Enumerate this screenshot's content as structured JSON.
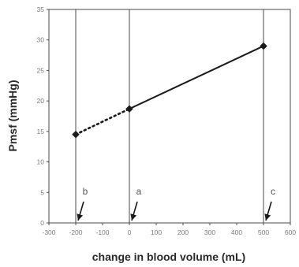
{
  "chart_data": {
    "type": "line",
    "title": "",
    "xlabel": "change in blood volume (mL)",
    "ylabel": "Pmsf (mmHg)",
    "xlim": [
      -300,
      600
    ],
    "ylim": [
      0,
      35
    ],
    "x_ticks": [
      "-300",
      "-200",
      "-100",
      "0",
      "100",
      "200",
      "300",
      "400",
      "500",
      "600"
    ],
    "y_ticks": [
      "0",
      "5",
      "10",
      "15",
      "20",
      "25",
      "30",
      "35"
    ],
    "grid": false,
    "reference_lines_x": [
      -200,
      0,
      500
    ],
    "series": [
      {
        "style": "dotted",
        "x": [
          -200,
          0
        ],
        "y": [
          14.5,
          18.7
        ]
      },
      {
        "style": "solid",
        "x": [
          0,
          500
        ],
        "y": [
          18.7,
          29
        ]
      }
    ],
    "points": [
      {
        "x": -200,
        "y": 14.5
      },
      {
        "x": 0,
        "y": 18.7
      },
      {
        "x": 500,
        "y": 29
      }
    ],
    "annotations": [
      {
        "text": "b",
        "x": -200
      },
      {
        "text": "a",
        "x": 0
      },
      {
        "text": "c",
        "x": 500
      }
    ],
    "colors": {
      "frame": "#4a4a4a",
      "line": "#1a1a1a",
      "tick_text": "#7a7a7a",
      "title_text": "#2a2a2a",
      "annotation_text": "#555555"
    }
  }
}
